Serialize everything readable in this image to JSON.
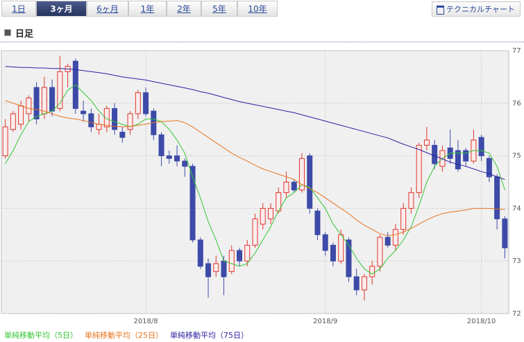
{
  "tabs": [
    "1日",
    "3ヶ月",
    "6ヶ月",
    "1年",
    "2年",
    "5年",
    "10年"
  ],
  "selected_tab": 1,
  "button": "テクニカルチャート",
  "header": "日足",
  "chart_data": {
    "type": "candlestick",
    "categories": [
      null,
      null,
      null,
      null,
      null,
      null,
      null,
      null,
      null,
      null,
      null,
      null,
      null,
      null,
      null,
      null,
      null,
      null,
      "2018/8",
      null,
      null,
      null,
      null,
      null,
      null,
      null,
      null,
      null,
      null,
      null,
      null,
      null,
      null,
      null,
      null,
      null,
      null,
      null,
      null,
      null,
      null,
      "2018/9",
      null,
      null,
      null,
      null,
      null,
      null,
      null,
      null,
      null,
      null,
      null,
      null,
      null,
      null,
      null,
      null,
      null,
      null,
      null,
      "2018/10",
      null,
      null,
      null
    ],
    "open": [
      75.0,
      75.5,
      75.6,
      75.8,
      76.3,
      75.8,
      76.3,
      75.9,
      76.6,
      76.8,
      75.85,
      75.8,
      75.5,
      75.55,
      75.9,
      75.45,
      75.5,
      75.8,
      76.2,
      75.85,
      75.4,
      75.0,
      75.0,
      74.9,
      74.8,
      73.4,
      72.95,
      72.8,
      73.0,
      72.8,
      73.2,
      73.0,
      73.3,
      73.7,
      73.8,
      73.95,
      74.3,
      74.5,
      74.35,
      75.0,
      73.95,
      73.5,
      73.3,
      73.0,
      73.4,
      72.7,
      72.45,
      72.7,
      72.9,
      73.45,
      73.3,
      73.6,
      74.0,
      74.3,
      75.2,
      75.2,
      74.8,
      75.15,
      75.1,
      75.1,
      74.9,
      75.35,
      74.95,
      74.6,
      73.8
    ],
    "high": [
      75.7,
      75.85,
      76.05,
      76.15,
      76.4,
      76.5,
      76.45,
      76.9,
      76.75,
      76.85,
      76.05,
      75.9,
      75.8,
      75.95,
      76.0,
      75.55,
      75.85,
      76.25,
      76.3,
      75.9,
      75.45,
      75.1,
      75.2,
      74.95,
      74.85,
      73.45,
      73.05,
      73.1,
      73.1,
      73.3,
      73.25,
      73.4,
      73.9,
      74.1,
      74.1,
      74.4,
      74.7,
      74.55,
      75.05,
      75.05,
      74.0,
      73.55,
      73.35,
      73.6,
      73.45,
      72.85,
      72.75,
      73.0,
      73.5,
      73.55,
      73.7,
      74.1,
      74.4,
      75.25,
      75.55,
      75.3,
      75.2,
      75.5,
      75.3,
      75.15,
      75.5,
      75.4,
      75.0,
      74.65,
      73.85
    ],
    "low": [
      74.95,
      75.45,
      75.5,
      75.65,
      75.6,
      75.7,
      75.75,
      75.85,
      76.3,
      75.8,
      75.65,
      75.45,
      75.4,
      75.45,
      75.4,
      75.25,
      75.4,
      75.7,
      75.75,
      75.3,
      74.8,
      74.85,
      74.8,
      74.6,
      73.35,
      72.85,
      72.3,
      72.7,
      72.35,
      72.75,
      72.9,
      72.9,
      73.25,
      73.6,
      73.7,
      73.9,
      74.2,
      74.3,
      74.3,
      73.9,
      73.4,
      73.1,
      72.9,
      72.95,
      72.6,
      72.35,
      72.25,
      72.55,
      72.8,
      73.25,
      73.2,
      73.5,
      73.9,
      74.2,
      75.1,
      74.75,
      74.7,
      74.85,
      74.7,
      74.8,
      74.85,
      74.9,
      74.5,
      73.6,
      73.05
    ],
    "close": [
      75.55,
      75.8,
      75.95,
      76.1,
      75.7,
      76.3,
      75.85,
      76.6,
      76.7,
      75.9,
      75.8,
      75.55,
      75.6,
      75.9,
      75.5,
      75.35,
      75.8,
      76.2,
      75.8,
      75.4,
      75.0,
      74.95,
      74.9,
      74.8,
      73.4,
      72.9,
      72.7,
      72.95,
      72.7,
      73.2,
      73.0,
      73.3,
      73.8,
      74.0,
      74.0,
      74.3,
      74.5,
      74.35,
      74.95,
      74.0,
      73.5,
      73.2,
      73.0,
      73.5,
      72.7,
      72.45,
      72.7,
      72.9,
      73.45,
      73.3,
      73.6,
      74.0,
      74.3,
      75.2,
      75.3,
      74.85,
      75.1,
      74.95,
      74.75,
      74.9,
      75.3,
      75.0,
      74.6,
      73.8,
      73.25
    ],
    "up_color": "#e0352c",
    "down_color": "#3d4aa8",
    "series": [
      {
        "name": "単純移動平均（5日）",
        "color": "#33c633",
        "values": [
          74.85,
          75.1,
          75.4,
          75.65,
          75.75,
          75.8,
          75.85,
          76.0,
          76.25,
          76.35,
          76.2,
          76.05,
          75.85,
          75.7,
          75.65,
          75.6,
          75.55,
          75.6,
          75.7,
          75.7,
          75.65,
          75.5,
          75.3,
          75.05,
          74.6,
          74.2,
          73.75,
          73.4,
          73.0,
          72.95,
          72.9,
          72.95,
          73.15,
          73.4,
          73.65,
          73.95,
          74.2,
          74.3,
          74.45,
          74.4,
          74.2,
          74.0,
          73.7,
          73.5,
          73.3,
          73.05,
          72.85,
          72.75,
          72.85,
          73.05,
          73.2,
          73.4,
          73.65,
          74.05,
          74.5,
          74.8,
          74.95,
          75.05,
          75.05,
          75.05,
          75.1,
          75.1,
          75.05,
          74.8,
          74.35
        ]
      },
      {
        "name": "単純移動平均（25日）",
        "color": "#e8731c",
        "values": [
          76.05,
          76.0,
          75.95,
          75.9,
          75.88,
          75.85,
          75.8,
          75.75,
          75.72,
          75.7,
          75.67,
          75.63,
          75.6,
          75.58,
          75.56,
          75.55,
          75.56,
          75.58,
          75.6,
          75.63,
          75.65,
          75.66,
          75.67,
          75.63,
          75.55,
          75.45,
          75.35,
          75.25,
          75.15,
          75.05,
          74.97,
          74.9,
          74.82,
          74.75,
          74.7,
          74.65,
          74.6,
          74.55,
          74.45,
          74.38,
          74.3,
          74.2,
          74.1,
          74.0,
          73.9,
          73.78,
          73.68,
          73.6,
          73.52,
          73.48,
          73.5,
          73.55,
          73.62,
          73.7,
          73.78,
          73.85,
          73.9,
          73.93,
          73.95,
          73.97,
          74.0,
          74.0,
          74.0,
          73.99,
          73.98
        ]
      },
      {
        "name": "単純移動平均（75日）",
        "color": "#2a1fa0",
        "values": [
          76.7,
          76.69,
          76.68,
          76.68,
          76.67,
          76.67,
          76.66,
          76.66,
          76.65,
          76.64,
          76.62,
          76.6,
          76.58,
          76.56,
          76.53,
          76.5,
          76.48,
          76.46,
          76.44,
          76.41,
          76.38,
          76.35,
          76.32,
          76.29,
          76.26,
          76.22,
          76.19,
          76.15,
          76.11,
          76.07,
          76.03,
          76.0,
          75.97,
          75.94,
          75.91,
          75.88,
          75.85,
          75.82,
          75.78,
          75.74,
          75.7,
          75.66,
          75.62,
          75.58,
          75.54,
          75.5,
          75.46,
          75.42,
          75.38,
          75.34,
          75.28,
          75.22,
          75.17,
          75.12,
          75.06,
          75.0,
          74.94,
          74.88,
          74.84,
          74.8,
          74.75,
          74.7,
          74.66,
          74.6,
          74.55
        ]
      }
    ],
    "ylim": [
      72,
      77
    ],
    "yticks": [
      72,
      73,
      74,
      75,
      76,
      77
    ],
    "grid": true
  }
}
